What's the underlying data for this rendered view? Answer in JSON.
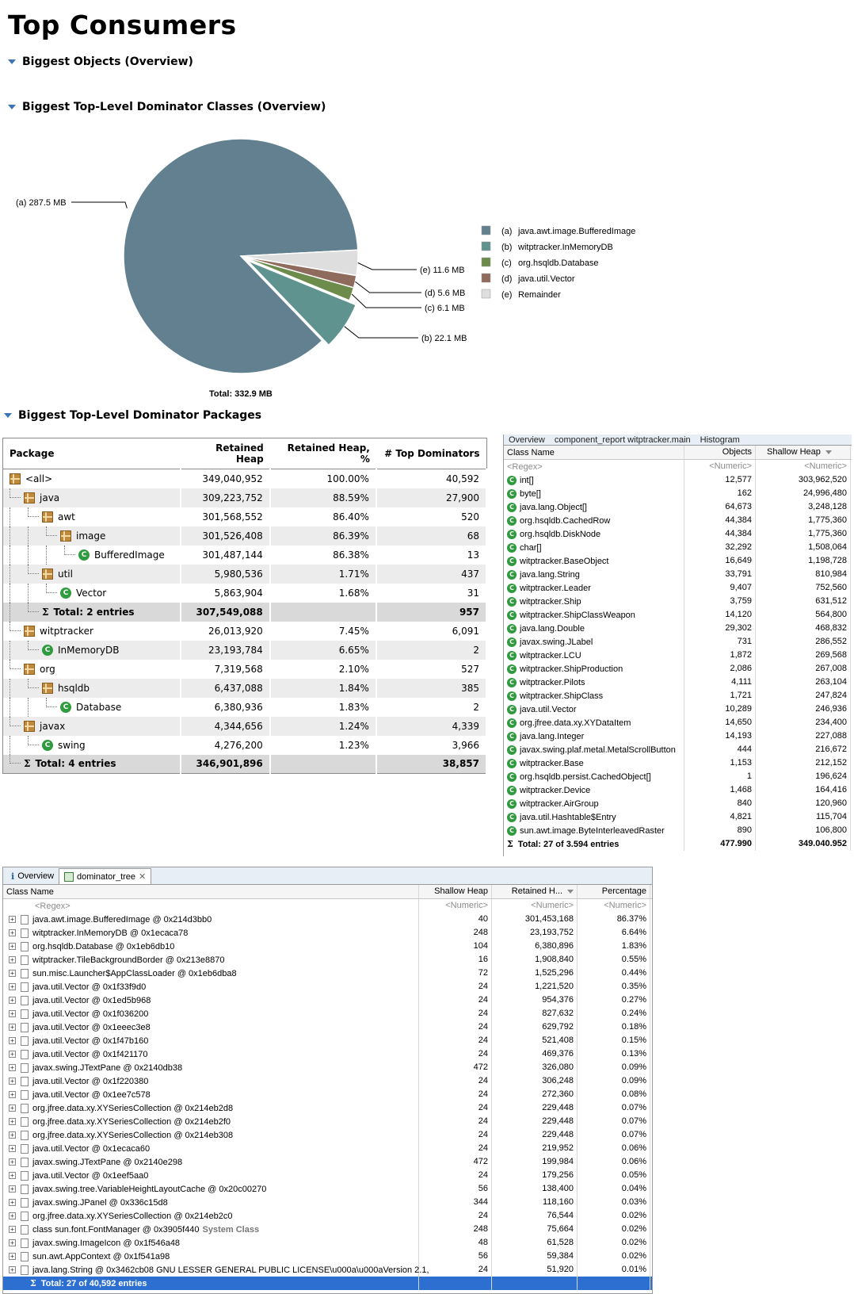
{
  "title": "Top Consumers",
  "sections": {
    "biggest_objects": "Biggest Objects (Overview)",
    "dominator_classes": "Biggest Top-Level Dominator Classes (Overview)",
    "dominator_packages": "Biggest Top-Level Dominator Packages"
  },
  "chart_data": {
    "type": "pie",
    "total_label": "Total: 332.9 MB",
    "slices": [
      {
        "key": "(a)",
        "label": "(a)  287.5 MB",
        "value": 287.5,
        "legend": "java.awt.image.BufferedImage",
        "color": "#62808f"
      },
      {
        "key": "(b)",
        "label": "(b)  22.1 MB",
        "value": 22.1,
        "legend": "witptracker.InMemoryDB",
        "color": "#5f9390"
      },
      {
        "key": "(c)",
        "label": "(c)  6.1 MB",
        "value": 6.1,
        "legend": "org.hsqldb.Database",
        "color": "#6d8b4b"
      },
      {
        "key": "(d)",
        "label": "(d)  5.6 MB",
        "value": 5.6,
        "legend": "java.util.Vector",
        "color": "#8f6b5e"
      },
      {
        "key": "(e)",
        "label": "(e)  11.6 MB",
        "value": 11.6,
        "legend": "Remainder",
        "color": "#dedede"
      }
    ],
    "legend_position": "right"
  },
  "packages": {
    "headers": [
      "Package",
      "Retained Heap",
      "Retained Heap, %",
      "# Top Dominators"
    ],
    "rows": [
      {
        "name": "<all>",
        "depth": 0,
        "icon": "package",
        "heap": "349,040,952",
        "pct": "100.00%",
        "dom": "40,592"
      },
      {
        "name": "java",
        "depth": 1,
        "icon": "package",
        "heap": "309,223,752",
        "pct": "88.59%",
        "dom": "27,900"
      },
      {
        "name": "awt",
        "depth": 2,
        "icon": "package",
        "heap": "301,568,552",
        "pct": "86.40%",
        "dom": "520"
      },
      {
        "name": "image",
        "depth": 3,
        "icon": "package",
        "heap": "301,526,408",
        "pct": "86.39%",
        "dom": "68"
      },
      {
        "name": "BufferedImage",
        "depth": 4,
        "icon": "class",
        "heap": "301,487,144",
        "pct": "86.38%",
        "dom": "13"
      },
      {
        "name": "util",
        "depth": 2,
        "icon": "package",
        "heap": "5,980,536",
        "pct": "1.71%",
        "dom": "437"
      },
      {
        "name": "Vector",
        "depth": 3,
        "icon": "class",
        "heap": "5,863,904",
        "pct": "1.68%",
        "dom": "31"
      },
      {
        "name": "Total: 2 entries",
        "depth": 2,
        "icon": "sigma",
        "heap": "307,549,088",
        "pct": "",
        "dom": "957",
        "total": true
      },
      {
        "name": "witptracker",
        "depth": 1,
        "icon": "package",
        "heap": "26,013,920",
        "pct": "7.45%",
        "dom": "6,091"
      },
      {
        "name": "InMemoryDB",
        "depth": 2,
        "icon": "class",
        "heap": "23,193,784",
        "pct": "6.65%",
        "dom": "2"
      },
      {
        "name": "org",
        "depth": 1,
        "icon": "package",
        "heap": "7,319,568",
        "pct": "2.10%",
        "dom": "527"
      },
      {
        "name": "hsqldb",
        "depth": 2,
        "icon": "package",
        "heap": "6,437,088",
        "pct": "1.84%",
        "dom": "385"
      },
      {
        "name": "Database",
        "depth": 3,
        "icon": "class",
        "heap": "6,380,936",
        "pct": "1.83%",
        "dom": "2"
      },
      {
        "name": "javax",
        "depth": 1,
        "icon": "package",
        "heap": "4,344,656",
        "pct": "1.24%",
        "dom": "4,339"
      },
      {
        "name": "swing",
        "depth": 2,
        "icon": "class",
        "heap": "4,276,200",
        "pct": "1.23%",
        "dom": "3,966"
      },
      {
        "name": "Total: 4 entries",
        "depth": 1,
        "icon": "sigma",
        "heap": "346,901,896",
        "pct": "",
        "dom": "38,857",
        "total": true
      }
    ]
  },
  "histogram": {
    "tabs": [
      "Overview",
      "component_report witptracker.main",
      "Histogram"
    ],
    "headers": [
      "Class Name",
      "Objects",
      "Shallow Heap"
    ],
    "filter": [
      "<Regex>",
      "<Numeric>",
      "<Numeric>"
    ],
    "rows": [
      [
        "int[]",
        "12,577",
        "303,962,520"
      ],
      [
        "byte[]",
        "162",
        "24,996,480"
      ],
      [
        "java.lang.Object[]",
        "64,673",
        "3,248,128"
      ],
      [
        "org.hsqldb.CachedRow",
        "44,384",
        "1,775,360"
      ],
      [
        "org.hsqldb.DiskNode",
        "44,384",
        "1,775,360"
      ],
      [
        "char[]",
        "32,292",
        "1,508,064"
      ],
      [
        "witptracker.BaseObject",
        "16,649",
        "1,198,728"
      ],
      [
        "java.lang.String",
        "33,791",
        "810,984"
      ],
      [
        "witptracker.Leader",
        "9,407",
        "752,560"
      ],
      [
        "witptracker.Ship",
        "3,759",
        "631,512"
      ],
      [
        "witptracker.ShipClassWeapon",
        "14,120",
        "564,800"
      ],
      [
        "java.lang.Double",
        "29,302",
        "468,832"
      ],
      [
        "javax.swing.JLabel",
        "731",
        "286,552"
      ],
      [
        "witptracker.LCU",
        "1,872",
        "269,568"
      ],
      [
        "witptracker.ShipProduction",
        "2,086",
        "267,008"
      ],
      [
        "witptracker.Pilots",
        "4,111",
        "263,104"
      ],
      [
        "witptracker.ShipClass",
        "1,721",
        "247,824"
      ],
      [
        "java.util.Vector",
        "10,289",
        "246,936"
      ],
      [
        "org.jfree.data.xy.XYDataItem",
        "14,650",
        "234,400"
      ],
      [
        "java.lang.Integer",
        "14,193",
        "227,088"
      ],
      [
        "javax.swing.plaf.metal.MetalScrollButton",
        "444",
        "216,672"
      ],
      [
        "witptracker.Base",
        "1,153",
        "212,152"
      ],
      [
        "org.hsqldb.persist.CachedObject[]",
        "1",
        "196,624"
      ],
      [
        "witptracker.Device",
        "1,468",
        "164,416"
      ],
      [
        "witptracker.AirGroup",
        "840",
        "120,960"
      ],
      [
        "java.util.Hashtable$Entry",
        "4,821",
        "115,704"
      ],
      [
        "sun.awt.image.ByteInterleavedRaster",
        "890",
        "106,800"
      ]
    ],
    "total": [
      "Total: 27 of 3.594 entries",
      "477.990",
      "349.040.952"
    ]
  },
  "dominator": {
    "tabs": [
      "Overview",
      "dominator_tree"
    ],
    "headers": [
      "Class Name",
      "Shallow Heap",
      "Retained H...",
      "Percentage"
    ],
    "filter": [
      "<Regex>",
      "<Numeric>",
      "<Numeric>",
      "<Numeric>"
    ],
    "rows": [
      {
        "name": "java.awt.image.BufferedImage @ 0x214d3bb0",
        "shallow": "40",
        "retained": "301,453,168",
        "pct": "86.37%"
      },
      {
        "name": "witptracker.InMemoryDB @ 0x1ecaca78",
        "shallow": "248",
        "retained": "23,193,752",
        "pct": "6.64%"
      },
      {
        "name": "org.hsqldb.Database @ 0x1eb6db10",
        "shallow": "104",
        "retained": "6,380,896",
        "pct": "1.83%"
      },
      {
        "name": "witptracker.TileBackgroundBorder @ 0x213e8870",
        "shallow": "16",
        "retained": "1,908,840",
        "pct": "0.55%"
      },
      {
        "name": "sun.misc.Launcher$AppClassLoader @ 0x1eb6dba8",
        "shallow": "72",
        "retained": "1,525,296",
        "pct": "0.44%"
      },
      {
        "name": "java.util.Vector @ 0x1f33f9d0",
        "shallow": "24",
        "retained": "1,221,520",
        "pct": "0.35%"
      },
      {
        "name": "java.util.Vector @ 0x1ed5b968",
        "shallow": "24",
        "retained": "954,376",
        "pct": "0.27%"
      },
      {
        "name": "java.util.Vector @ 0x1f036200",
        "shallow": "24",
        "retained": "827,632",
        "pct": "0.24%"
      },
      {
        "name": "java.util.Vector @ 0x1eeec3e8",
        "shallow": "24",
        "retained": "629,792",
        "pct": "0.18%"
      },
      {
        "name": "java.util.Vector @ 0x1f47b160",
        "shallow": "24",
        "retained": "521,408",
        "pct": "0.15%"
      },
      {
        "name": "java.util.Vector @ 0x1f421170",
        "shallow": "24",
        "retained": "469,376",
        "pct": "0.13%"
      },
      {
        "name": "javax.swing.JTextPane @ 0x2140db38",
        "shallow": "472",
        "retained": "326,080",
        "pct": "0.09%"
      },
      {
        "name": "java.util.Vector @ 0x1f220380",
        "shallow": "24",
        "retained": "306,248",
        "pct": "0.09%"
      },
      {
        "name": "java.util.Vector @ 0x1ee7c578",
        "shallow": "24",
        "retained": "272,360",
        "pct": "0.08%"
      },
      {
        "name": "org.jfree.data.xy.XYSeriesCollection @ 0x214eb2d8",
        "shallow": "24",
        "retained": "229,448",
        "pct": "0.07%"
      },
      {
        "name": "org.jfree.data.xy.XYSeriesCollection @ 0x214eb2f0",
        "shallow": "24",
        "retained": "229,448",
        "pct": "0.07%"
      },
      {
        "name": "org.jfree.data.xy.XYSeriesCollection @ 0x214eb308",
        "shallow": "24",
        "retained": "229,448",
        "pct": "0.07%"
      },
      {
        "name": "java.util.Vector @ 0x1ecaca60",
        "shallow": "24",
        "retained": "219,952",
        "pct": "0.06%"
      },
      {
        "name": "javax.swing.JTextPane @ 0x2140e298",
        "shallow": "472",
        "retained": "199,984",
        "pct": "0.06%"
      },
      {
        "name": "java.util.Vector @ 0x1eef5aa0",
        "shallow": "24",
        "retained": "179,256",
        "pct": "0.05%"
      },
      {
        "name": "javax.swing.tree.VariableHeightLayoutCache @ 0x20c00270",
        "shallow": "56",
        "retained": "138,400",
        "pct": "0.04%"
      },
      {
        "name": "javax.swing.JPanel @ 0x336c15d8",
        "shallow": "344",
        "retained": "118,160",
        "pct": "0.03%"
      },
      {
        "name": "org.jfree.data.xy.XYSeriesCollection @ 0x214eb2c0",
        "shallow": "24",
        "retained": "76,544",
        "pct": "0.02%"
      },
      {
        "name": "class sun.font.FontManager @ 0x3905f440",
        "extra": "System Class",
        "shallow": "248",
        "retained": "75,664",
        "pct": "0.02%"
      },
      {
        "name": "javax.swing.ImageIcon @ 0x1f546a48",
        "shallow": "48",
        "retained": "61,528",
        "pct": "0.02%"
      },
      {
        "name": "sun.awt.AppContext @ 0x1f541a98",
        "shallow": "56",
        "retained": "59,384",
        "pct": "0.02%"
      },
      {
        "name": "java.lang.String @ 0x3462cb08  GNU LESSER GENERAL PUBLIC LICENSE\\u000a\\u000aVersion 2.1,",
        "shallow": "24",
        "retained": "51,920",
        "pct": "0.01%"
      }
    ],
    "total": "Total: 27 of 40,592 entries"
  }
}
